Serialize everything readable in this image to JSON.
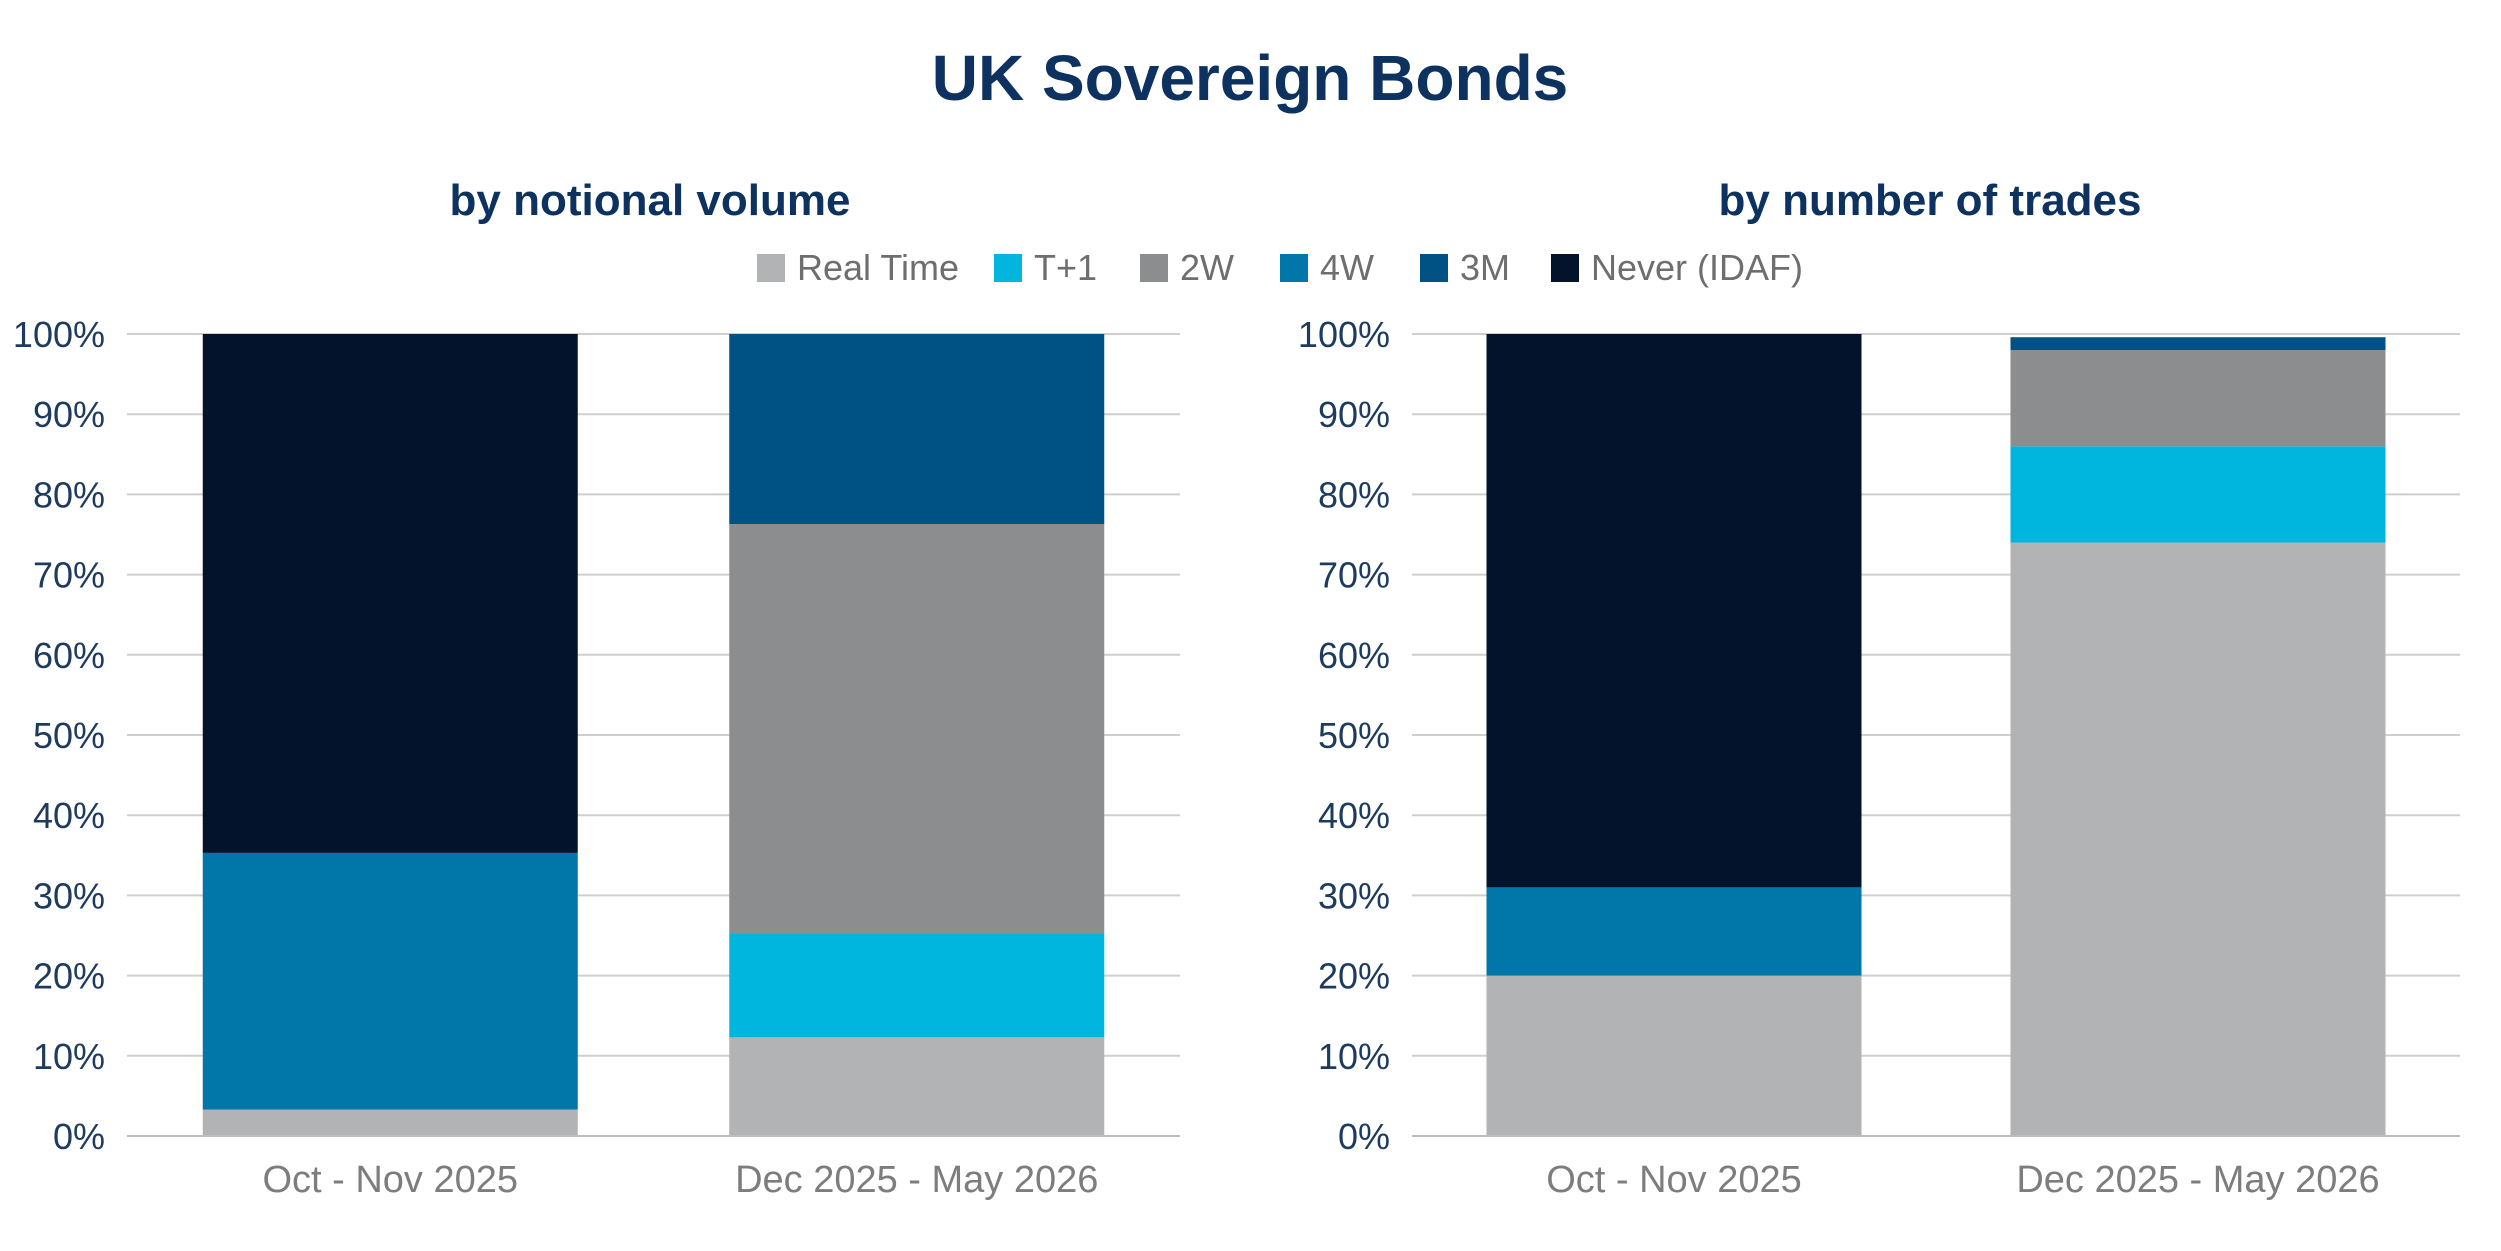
{
  "title": "UK Sovereign Bonds",
  "legend": [
    {
      "name": "Real Time",
      "color": "#b1b3b5"
    },
    {
      "name": "T+1",
      "color": "#00b5de"
    },
    {
      "name": "2W",
      "color": "#8c8d8f"
    },
    {
      "name": "4W",
      "color": "#0077a8"
    },
    {
      "name": "3M",
      "color": "#005285"
    },
    {
      "name": "Never (IDAF)",
      "color": "#02132b"
    }
  ],
  "chart_data": [
    {
      "type": "bar",
      "stacked": true,
      "title": "by notional volume",
      "categories": [
        "Oct - Nov 2025",
        "Dec 2025 - May 2026"
      ],
      "ylim": [
        0,
        100
      ],
      "yticks": [
        "0%",
        "10%",
        "20%",
        "30%",
        "40%",
        "50%",
        "60%",
        "70%",
        "80%",
        "90%",
        "100%"
      ],
      "grid": true,
      "legend_position": "top",
      "series": [
        {
          "name": "Real Time",
          "values": [
            3.3,
            12.3
          ]
        },
        {
          "name": "T+1",
          "values": [
            0,
            13
          ]
        },
        {
          "name": "2W",
          "values": [
            0,
            51
          ]
        },
        {
          "name": "4W",
          "values": [
            32,
            0
          ]
        },
        {
          "name": "3M",
          "values": [
            0,
            23.7
          ]
        },
        {
          "name": "Never (IDAF)",
          "values": [
            64.7,
            0
          ]
        }
      ]
    },
    {
      "type": "bar",
      "stacked": true,
      "title": "by number of trades",
      "categories": [
        "Oct - Nov 2025",
        "Dec 2025 - May 2026"
      ],
      "ylim": [
        0,
        100
      ],
      "yticks": [
        "0%",
        "10%",
        "20%",
        "30%",
        "40%",
        "50%",
        "60%",
        "70%",
        "80%",
        "90%",
        "100%"
      ],
      "grid": true,
      "legend_position": "top",
      "series": [
        {
          "name": "Real Time",
          "values": [
            20,
            74
          ]
        },
        {
          "name": "T+1",
          "values": [
            0,
            12
          ]
        },
        {
          "name": "2W",
          "values": [
            0,
            12
          ]
        },
        {
          "name": "4W",
          "values": [
            11,
            0
          ]
        },
        {
          "name": "3M",
          "values": [
            0,
            1.6
          ]
        },
        {
          "name": "Never (IDAF)",
          "values": [
            69,
            0
          ]
        }
      ]
    }
  ]
}
